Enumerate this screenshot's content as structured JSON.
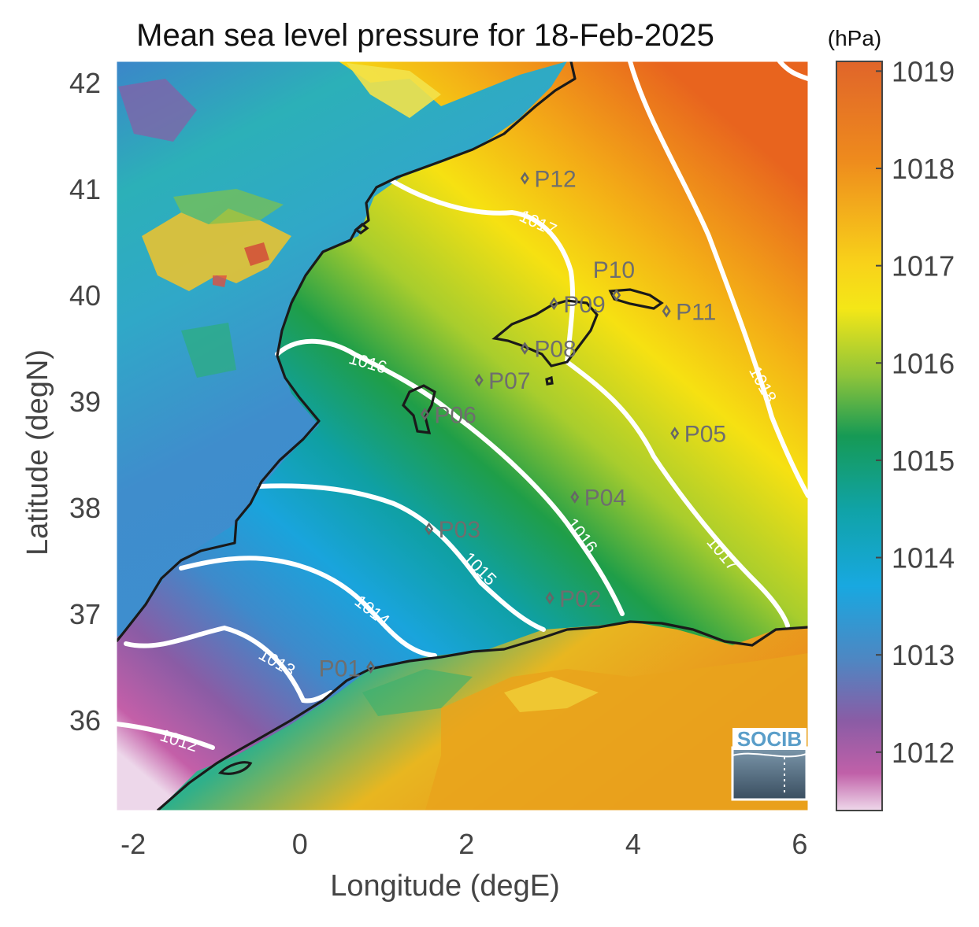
{
  "title": "Mean sea level pressure for 18-Feb-2025",
  "xlabel": "Longitude (degE)",
  "ylabel": "Latitude (degN)",
  "x_ticks": [
    "-2",
    "0",
    "2",
    "4",
    "6"
  ],
  "y_ticks": [
    "42",
    "41",
    "40",
    "39",
    "38",
    "37",
    "36"
  ],
  "colorbar": {
    "unit": "(hPa)",
    "ticks": [
      "1019",
      "1018",
      "1017",
      "1016",
      "1015",
      "1014",
      "1013",
      "1012"
    ]
  },
  "contour_labels": [
    {
      "text": "1012"
    },
    {
      "text": "1013"
    },
    {
      "text": "1014"
    },
    {
      "text": "1015"
    },
    {
      "text": "1016"
    },
    {
      "text": "1016"
    },
    {
      "text": "1017"
    },
    {
      "text": "1017"
    },
    {
      "text": "1018"
    }
  ],
  "stations": [
    {
      "label": "P01",
      "lon": 0.85,
      "lat": 36.5
    },
    {
      "label": "P02",
      "lon": 3.0,
      "lat": 37.15
    },
    {
      "label": "P03",
      "lon": 1.55,
      "lat": 37.8
    },
    {
      "label": "P04",
      "lon": 3.3,
      "lat": 38.1
    },
    {
      "label": "P05",
      "lon": 4.5,
      "lat": 38.7
    },
    {
      "label": "P06",
      "lon": 1.5,
      "lat": 38.88
    },
    {
      "label": "P07",
      "lon": 2.15,
      "lat": 39.2
    },
    {
      "label": "P08",
      "lon": 2.7,
      "lat": 39.5
    },
    {
      "label": "P09",
      "lon": 3.05,
      "lat": 39.92
    },
    {
      "label": "P10",
      "lon": 3.8,
      "lat": 40.0
    },
    {
      "label": "P11",
      "lon": 4.4,
      "lat": 39.85
    },
    {
      "label": "P12",
      "lon": 2.7,
      "lat": 41.1
    }
  ],
  "logo": {
    "text": "SOCIB"
  },
  "colors": {
    "land": "#e8a020",
    "sea_high": "#f5e010",
    "sea_low": "#d070b0"
  }
}
